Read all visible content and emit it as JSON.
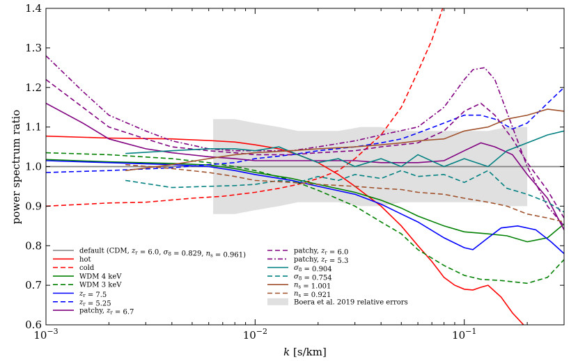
{
  "chart_data": {
    "type": "line",
    "xscale": "log",
    "xlim": [
      0.001,
      0.3
    ],
    "ylim": [
      0.6,
      1.4
    ],
    "xlabel": "k [s/km]",
    "ylabel": "power spectrum ratio",
    "xticks": [
      {
        "value": 0.001,
        "base": "10",
        "exp": "−3"
      },
      {
        "value": 0.01,
        "base": "10",
        "exp": "−2"
      },
      {
        "value": 0.1,
        "base": "10",
        "exp": "−1"
      }
    ],
    "yticks": [
      {
        "value": 0.6,
        "label": "0.6"
      },
      {
        "value": 0.7,
        "label": "0.7"
      },
      {
        "value": 0.8,
        "label": "0.8"
      },
      {
        "value": 0.9,
        "label": "0.9"
      },
      {
        "value": 1.0,
        "label": "1.0"
      },
      {
        "value": 1.1,
        "label": "1.1"
      },
      {
        "value": 1.2,
        "label": "1.2"
      },
      {
        "value": 1.3,
        "label": "1.3"
      },
      {
        "value": 1.4,
        "label": "1.4"
      }
    ],
    "band": {
      "name": "Boera et al. 2019 relative errors",
      "color": "#e0e0e0",
      "x": [
        0.0063,
        0.008,
        0.01,
        0.013,
        0.016,
        0.02,
        0.025,
        0.032,
        0.04,
        0.05,
        0.063,
        0.08,
        0.1,
        0.13,
        0.16,
        0.2
      ],
      "upper": [
        1.12,
        1.12,
        1.11,
        1.1,
        1.09,
        1.09,
        1.09,
        1.1,
        1.1,
        1.09,
        1.09,
        1.09,
        1.09,
        1.09,
        1.1,
        1.1
      ],
      "lower": [
        0.88,
        0.88,
        0.89,
        0.9,
        0.91,
        0.91,
        0.91,
        0.9,
        0.9,
        0.91,
        0.91,
        0.91,
        0.91,
        0.91,
        0.9,
        0.9
      ]
    },
    "series": [
      {
        "name": "default (CDM, ",
        "latex": [
          [
            "t",
            "default (CDM, "
          ],
          [
            "i",
            "z"
          ],
          [
            "s",
            "r"
          ],
          [
            "t",
            " = 6.0, "
          ],
          [
            "i",
            "σ"
          ],
          [
            "s",
            "8"
          ],
          [
            "t",
            " = 0.829, "
          ],
          [
            "i",
            "n"
          ],
          [
            "s",
            "s"
          ],
          [
            "t",
            " = 0.961)"
          ]
        ],
        "color": "#808080",
        "dash": "solid",
        "x": [
          0.001,
          0.3
        ],
        "y": [
          1.0,
          1.0
        ]
      },
      {
        "name": "hot",
        "latex": [
          [
            "t",
            "hot"
          ]
        ],
        "color": "#ff0000",
        "dash": "solid",
        "x": [
          0.001,
          0.002,
          0.004,
          0.006,
          0.008,
          0.01,
          0.013,
          0.016,
          0.02,
          0.025,
          0.03,
          0.04,
          0.05,
          0.06,
          0.07,
          0.08,
          0.09,
          0.1,
          0.11,
          0.12,
          0.13,
          0.15,
          0.17,
          0.2
        ],
        "y": [
          1.077,
          1.072,
          1.07,
          1.066,
          1.062,
          1.055,
          1.045,
          1.03,
          1.01,
          0.98,
          0.95,
          0.9,
          0.85,
          0.8,
          0.76,
          0.72,
          0.7,
          0.69,
          0.688,
          0.695,
          0.7,
          0.67,
          0.63,
          0.59
        ]
      },
      {
        "name": "cold",
        "latex": [
          [
            "t",
            "cold"
          ]
        ],
        "color": "#ff0000",
        "dash": "dash",
        "x": [
          0.001,
          0.002,
          0.003,
          0.005,
          0.007,
          0.01,
          0.013,
          0.016,
          0.02,
          0.025,
          0.03,
          0.04,
          0.05,
          0.06,
          0.07,
          0.08
        ],
        "y": [
          0.9,
          0.908,
          0.91,
          0.92,
          0.925,
          0.935,
          0.945,
          0.955,
          0.97,
          0.99,
          1.02,
          1.08,
          1.15,
          1.24,
          1.32,
          1.41
        ]
      },
      {
        "name": "WDM 4 keV",
        "latex": [
          [
            "t",
            "WDM 4 keV"
          ]
        ],
        "color": "#008000",
        "dash": "solid",
        "x": [
          0.001,
          0.002,
          0.004,
          0.006,
          0.008,
          0.01,
          0.015,
          0.02,
          0.03,
          0.04,
          0.05,
          0.06,
          0.08,
          0.1,
          0.13,
          0.16,
          0.2,
          0.25,
          0.3
        ],
        "y": [
          1.018,
          1.012,
          1.008,
          1.004,
          0.995,
          0.985,
          0.97,
          0.955,
          0.935,
          0.915,
          0.895,
          0.875,
          0.85,
          0.835,
          0.83,
          0.825,
          0.81,
          0.82,
          0.855
        ]
      },
      {
        "name": "WDM 3 keV",
        "latex": [
          [
            "t",
            "WDM 3 keV"
          ]
        ],
        "color": "#008000",
        "dash": "dash",
        "x": [
          0.001,
          0.002,
          0.004,
          0.006,
          0.008,
          0.01,
          0.015,
          0.02,
          0.03,
          0.04,
          0.05,
          0.06,
          0.08,
          0.1,
          0.12,
          0.15,
          0.2,
          0.25,
          0.3
        ],
        "y": [
          1.035,
          1.03,
          1.02,
          1.01,
          1.0,
          0.99,
          0.965,
          0.94,
          0.9,
          0.86,
          0.83,
          0.79,
          0.75,
          0.725,
          0.715,
          0.712,
          0.705,
          0.72,
          0.765
        ]
      },
      {
        "name": "zr = 7.5",
        "latex": [
          [
            "i",
            "z"
          ],
          [
            "s",
            "r"
          ],
          [
            "t",
            " = 7.5"
          ]
        ],
        "color": "#0000ff",
        "dash": "solid",
        "x": [
          0.001,
          0.002,
          0.004,
          0.006,
          0.008,
          0.01,
          0.015,
          0.02,
          0.03,
          0.04,
          0.05,
          0.06,
          0.08,
          0.1,
          0.11,
          0.13,
          0.15,
          0.18,
          0.22,
          0.26,
          0.3
        ],
        "y": [
          1.015,
          1.01,
          1.005,
          1.0,
          0.99,
          0.98,
          0.965,
          0.95,
          0.93,
          0.905,
          0.88,
          0.86,
          0.82,
          0.795,
          0.79,
          0.82,
          0.845,
          0.85,
          0.84,
          0.81,
          0.78
        ]
      },
      {
        "name": "zr = 5.25",
        "latex": [
          [
            "i",
            "z"
          ],
          [
            "s",
            "r"
          ],
          [
            "t",
            " = 5.25"
          ]
        ],
        "color": "#0000ff",
        "dash": "dash",
        "x": [
          0.001,
          0.002,
          0.004,
          0.006,
          0.008,
          0.01,
          0.015,
          0.02,
          0.03,
          0.04,
          0.05,
          0.06,
          0.08,
          0.1,
          0.12,
          0.14,
          0.17,
          0.2,
          0.25,
          0.3
        ],
        "y": [
          0.985,
          0.99,
          0.997,
          1.005,
          1.01,
          1.02,
          1.03,
          1.04,
          1.05,
          1.06,
          1.07,
          1.085,
          1.11,
          1.13,
          1.13,
          1.12,
          1.095,
          1.11,
          1.16,
          1.2
        ]
      },
      {
        "name": "patchy, zr = 6.7",
        "latex": [
          [
            "t",
            "patchy, "
          ],
          [
            "i",
            "z"
          ],
          [
            "s",
            "r"
          ],
          [
            "t",
            " = 6.7"
          ]
        ],
        "color": "#800080",
        "dash": "solid",
        "x": [
          0.001,
          0.0015,
          0.002,
          0.003,
          0.004,
          0.006,
          0.008,
          0.01,
          0.015,
          0.02,
          0.03,
          0.04,
          0.06,
          0.08,
          0.1,
          0.12,
          0.14,
          0.17,
          0.2,
          0.25,
          0.3
        ],
        "y": [
          1.16,
          1.11,
          1.07,
          1.045,
          1.035,
          1.025,
          1.02,
          1.015,
          1.015,
          1.015,
          1.015,
          1.01,
          1.01,
          1.015,
          1.04,
          1.06,
          1.05,
          1.03,
          0.98,
          0.92,
          0.84
        ]
      },
      {
        "name": "patchy, zr = 6.0",
        "latex": [
          [
            "t",
            "patchy, "
          ],
          [
            "i",
            "z"
          ],
          [
            "s",
            "r"
          ],
          [
            "t",
            " = 6.0"
          ]
        ],
        "color": "#800080",
        "dash": "dash",
        "x": [
          0.001,
          0.0015,
          0.002,
          0.003,
          0.004,
          0.006,
          0.008,
          0.01,
          0.015,
          0.02,
          0.03,
          0.04,
          0.06,
          0.08,
          0.1,
          0.12,
          0.14,
          0.17,
          0.2,
          0.25,
          0.3
        ],
        "y": [
          1.22,
          1.15,
          1.1,
          1.07,
          1.05,
          1.04,
          1.035,
          1.03,
          1.03,
          1.035,
          1.04,
          1.05,
          1.06,
          1.09,
          1.14,
          1.16,
          1.13,
          1.07,
          1.01,
          0.94,
          0.87
        ]
      },
      {
        "name": "patchy, zr = 5.3",
        "latex": [
          [
            "t",
            "patchy, "
          ],
          [
            "i",
            "z"
          ],
          [
            "s",
            "r"
          ],
          [
            "t",
            " = 5.3"
          ]
        ],
        "color": "#800080",
        "dash": "dashdot",
        "x": [
          0.001,
          0.0015,
          0.002,
          0.003,
          0.004,
          0.006,
          0.008,
          0.01,
          0.015,
          0.02,
          0.03,
          0.04,
          0.06,
          0.08,
          0.1,
          0.11,
          0.125,
          0.14,
          0.17,
          0.2,
          0.25,
          0.3
        ],
        "y": [
          1.28,
          1.19,
          1.13,
          1.09,
          1.065,
          1.045,
          1.04,
          1.04,
          1.04,
          1.05,
          1.065,
          1.08,
          1.1,
          1.15,
          1.22,
          1.245,
          1.25,
          1.22,
          1.1,
          1.0,
          0.9,
          0.85
        ]
      },
      {
        "name": "σ8 = 0.904",
        "latex": [
          [
            "i",
            "σ"
          ],
          [
            "s",
            "8"
          ],
          [
            "t",
            " = 0.904"
          ]
        ],
        "color": "#008080",
        "dash": "solid",
        "x": [
          0.0024,
          0.004,
          0.006,
          0.008,
          0.01,
          0.013,
          0.016,
          0.02,
          0.025,
          0.03,
          0.04,
          0.05,
          0.06,
          0.08,
          0.1,
          0.13,
          0.16,
          0.2,
          0.25,
          0.3
        ],
        "y": [
          1.033,
          1.04,
          1.045,
          1.045,
          1.04,
          1.05,
          1.03,
          1.01,
          1.02,
          1.0,
          1.02,
          1.0,
          1.03,
          1.0,
          1.02,
          1.0,
          1.04,
          1.06,
          1.08,
          1.09
        ]
      },
      {
        "name": "σ8 = 0.754",
        "latex": [
          [
            "i",
            "σ"
          ],
          [
            "s",
            "8"
          ],
          [
            "t",
            " = 0.754"
          ]
        ],
        "color": "#008080",
        "dash": "dash",
        "x": [
          0.0024,
          0.004,
          0.006,
          0.008,
          0.01,
          0.013,
          0.016,
          0.02,
          0.025,
          0.03,
          0.04,
          0.05,
          0.06,
          0.08,
          0.1,
          0.13,
          0.16,
          0.2,
          0.25,
          0.3
        ],
        "y": [
          0.965,
          0.947,
          0.95,
          0.952,
          0.955,
          0.965,
          0.96,
          0.975,
          0.965,
          0.98,
          0.97,
          0.99,
          0.975,
          0.98,
          0.96,
          0.99,
          0.945,
          0.93,
          0.91,
          0.885
        ]
      },
      {
        "name": "ns = 1.001",
        "latex": [
          [
            "i",
            "n"
          ],
          [
            "s",
            "s"
          ],
          [
            "t",
            " = 1.001"
          ]
        ],
        "color": "#a0522d",
        "dash": "solid",
        "x": [
          0.0024,
          0.004,
          0.006,
          0.008,
          0.01,
          0.015,
          0.02,
          0.03,
          0.04,
          0.05,
          0.06,
          0.08,
          0.1,
          0.13,
          0.16,
          0.2,
          0.25,
          0.3
        ],
        "y": [
          0.99,
          1.005,
          1.02,
          1.03,
          1.035,
          1.04,
          1.045,
          1.05,
          1.055,
          1.06,
          1.065,
          1.07,
          1.09,
          1.1,
          1.12,
          1.13,
          1.145,
          1.14
        ]
      },
      {
        "name": "ns = 0.921",
        "latex": [
          [
            "i",
            "n"
          ],
          [
            "s",
            "s"
          ],
          [
            "t",
            " = 0.921"
          ]
        ],
        "color": "#a0522d",
        "dash": "dash",
        "x": [
          0.0024,
          0.004,
          0.006,
          0.008,
          0.01,
          0.015,
          0.02,
          0.03,
          0.04,
          0.05,
          0.06,
          0.08,
          0.1,
          0.13,
          0.16,
          0.2,
          0.25,
          0.3
        ],
        "y": [
          1.005,
          0.995,
          0.985,
          0.975,
          0.965,
          0.96,
          0.955,
          0.95,
          0.945,
          0.942,
          0.935,
          0.93,
          0.92,
          0.91,
          0.9,
          0.88,
          0.87,
          0.86
        ]
      }
    ],
    "legend": {
      "left_column": [
        0,
        1,
        2,
        3,
        4,
        5,
        6,
        7
      ],
      "right_column": [
        8,
        9,
        10,
        11,
        12,
        13,
        "band"
      ]
    }
  }
}
